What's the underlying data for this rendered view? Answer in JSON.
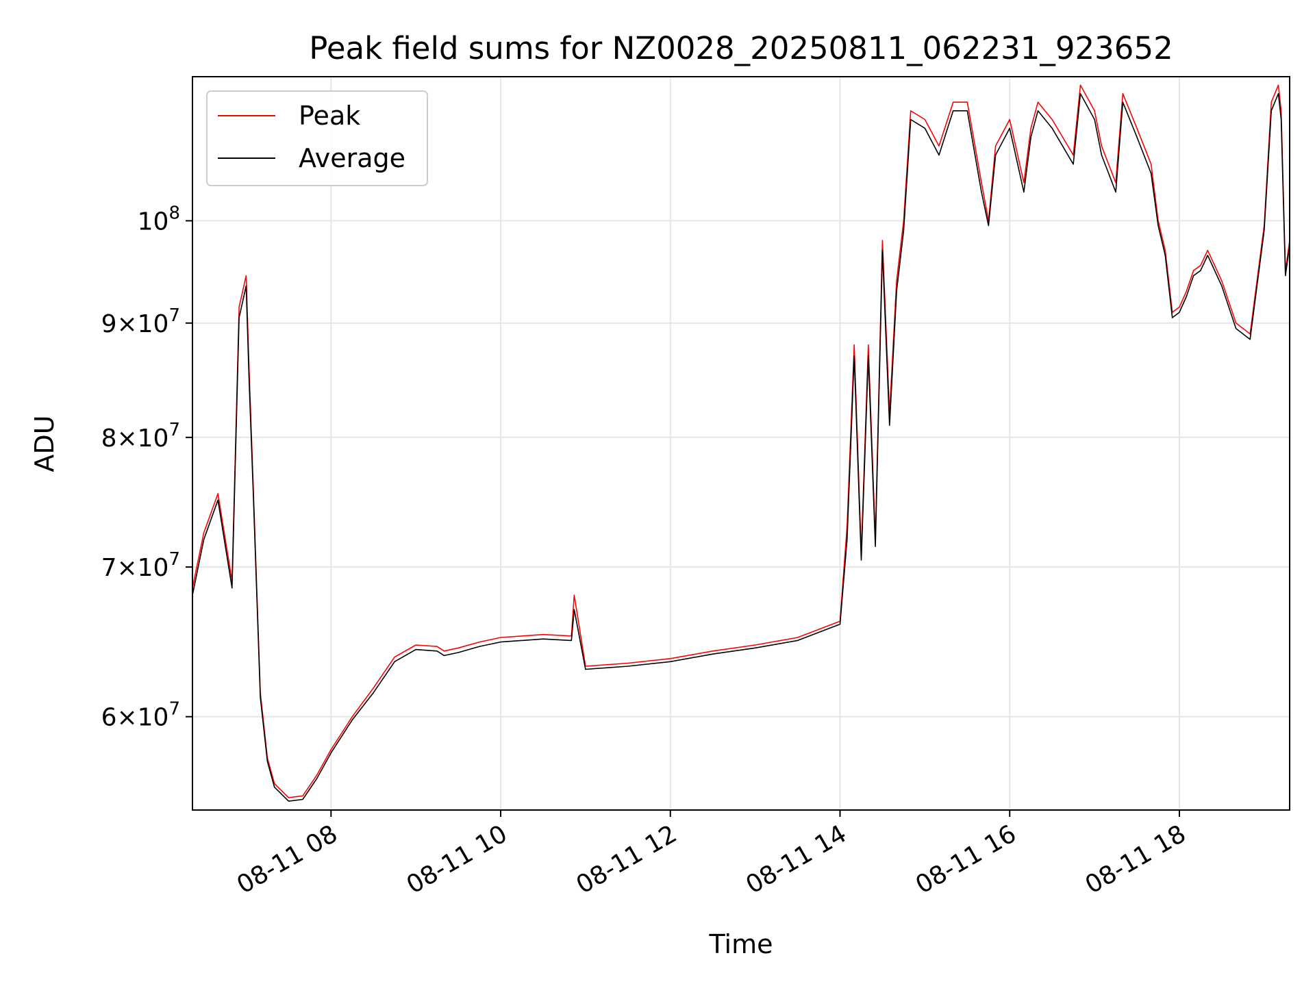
{
  "chart_data": {
    "type": "line",
    "title": "Peak field sums for NZ0028_20250811_062231_923652",
    "xlabel": "Time",
    "ylabel": "ADU",
    "y_scale": "log",
    "grid": true,
    "legend_position": "top-left",
    "x_domain": [
      "2025-08-11 06:22",
      "2025-08-11 19:18"
    ],
    "ylim": [
      54500000,
      116000000
    ],
    "x_ticks": [
      {
        "value": "2025-08-11 08:00",
        "label": "08-11 08"
      },
      {
        "value": "2025-08-11 10:00",
        "label": "08-11 10"
      },
      {
        "value": "2025-08-11 12:00",
        "label": "08-11 12"
      },
      {
        "value": "2025-08-11 14:00",
        "label": "08-11 14"
      },
      {
        "value": "2025-08-11 16:00",
        "label": "08-11 16"
      },
      {
        "value": "2025-08-11 18:00",
        "label": "08-11 18"
      }
    ],
    "y_ticks": [
      {
        "value": 60000000,
        "mantissa": "6",
        "exponent": "7"
      },
      {
        "value": 70000000,
        "mantissa": "7",
        "exponent": "7"
      },
      {
        "value": 80000000,
        "mantissa": "8",
        "exponent": "7"
      },
      {
        "value": 90000000,
        "mantissa": "9",
        "exponent": "7"
      },
      {
        "value": 100000000,
        "mantissa": "10",
        "exponent": "8"
      }
    ],
    "x": [
      "06:22",
      "06:30",
      "06:40",
      "06:50",
      "06:55",
      "07:00",
      "07:02",
      "07:05",
      "07:10",
      "07:15",
      "07:20",
      "07:30",
      "07:40",
      "07:50",
      "08:00",
      "08:15",
      "08:30",
      "08:45",
      "09:00",
      "09:15",
      "09:20",
      "09:30",
      "09:45",
      "10:00",
      "10:30",
      "10:50",
      "10:52",
      "11:00",
      "11:30",
      "12:00",
      "12:30",
      "13:00",
      "13:30",
      "14:00",
      "14:05",
      "14:10",
      "14:15",
      "14:20",
      "14:25",
      "14:30",
      "14:35",
      "14:40",
      "14:45",
      "14:50",
      "15:00",
      "15:10",
      "15:20",
      "15:30",
      "15:40",
      "15:45",
      "15:50",
      "16:00",
      "16:10",
      "16:15",
      "16:20",
      "16:30",
      "16:45",
      "16:50",
      "17:00",
      "17:05",
      "17:15",
      "17:20",
      "17:30",
      "17:40",
      "17:45",
      "17:50",
      "17:55",
      "18:00",
      "18:05",
      "18:10",
      "18:15",
      "18:20",
      "18:30",
      "18:40",
      "18:50",
      "19:00",
      "19:05",
      "19:10",
      "19:12",
      "19:15",
      "19:18"
    ],
    "series": [
      {
        "name": "Peak",
        "color": "#ff0000",
        "values": [
          68500000,
          72500000,
          75500000,
          69000000,
          91500000,
          94500000,
          86000000,
          76000000,
          61500000,
          57500000,
          56000000,
          55200000,
          55300000,
          56500000,
          58000000,
          60000000,
          61800000,
          63800000,
          64600000,
          64500000,
          64200000,
          64400000,
          64800000,
          65100000,
          65300000,
          65200000,
          68000000,
          63200000,
          63400000,
          63700000,
          64200000,
          64600000,
          65100000,
          66200000,
          73000000,
          88000000,
          71000000,
          88000000,
          72000000,
          98000000,
          82000000,
          94000000,
          100000000,
          112000000,
          111000000,
          108000000,
          113000000,
          113000000,
          104000000,
          100000000,
          108000000,
          111000000,
          104000000,
          110000000,
          113000000,
          111000000,
          107000000,
          115000000,
          112000000,
          108000000,
          104000000,
          114000000,
          110000000,
          106000000,
          100000000,
          97000000,
          91000000,
          91500000,
          93000000,
          95000000,
          95500000,
          97000000,
          94000000,
          90000000,
          89000000,
          99500000,
          113000000,
          115000000,
          112000000,
          95000000,
          98000000
        ]
      },
      {
        "name": "Average",
        "color": "#000000",
        "values": [
          68000000,
          72000000,
          75000000,
          68500000,
          90500000,
          93500000,
          85000000,
          75500000,
          61200000,
          57300000,
          55800000,
          55000000,
          55100000,
          56300000,
          57800000,
          59800000,
          61500000,
          63500000,
          64300000,
          64200000,
          63900000,
          64100000,
          64500000,
          64800000,
          65000000,
          64900000,
          67000000,
          63000000,
          63200000,
          63500000,
          64000000,
          64400000,
          64900000,
          66000000,
          72000000,
          87000000,
          70500000,
          87000000,
          71500000,
          97000000,
          81000000,
          93000000,
          99000000,
          111000000,
          110000000,
          107000000,
          112000000,
          112000000,
          103000000,
          99500000,
          107000000,
          110000000,
          103000000,
          109000000,
          112000000,
          110000000,
          106000000,
          114000000,
          111000000,
          107000000,
          103000000,
          113000000,
          109000000,
          105000000,
          99500000,
          96500000,
          90500000,
          91000000,
          92500000,
          94500000,
          95000000,
          96500000,
          93500000,
          89500000,
          88500000,
          99000000,
          112000000,
          114000000,
          111000000,
          94500000,
          97500000
        ]
      }
    ]
  }
}
